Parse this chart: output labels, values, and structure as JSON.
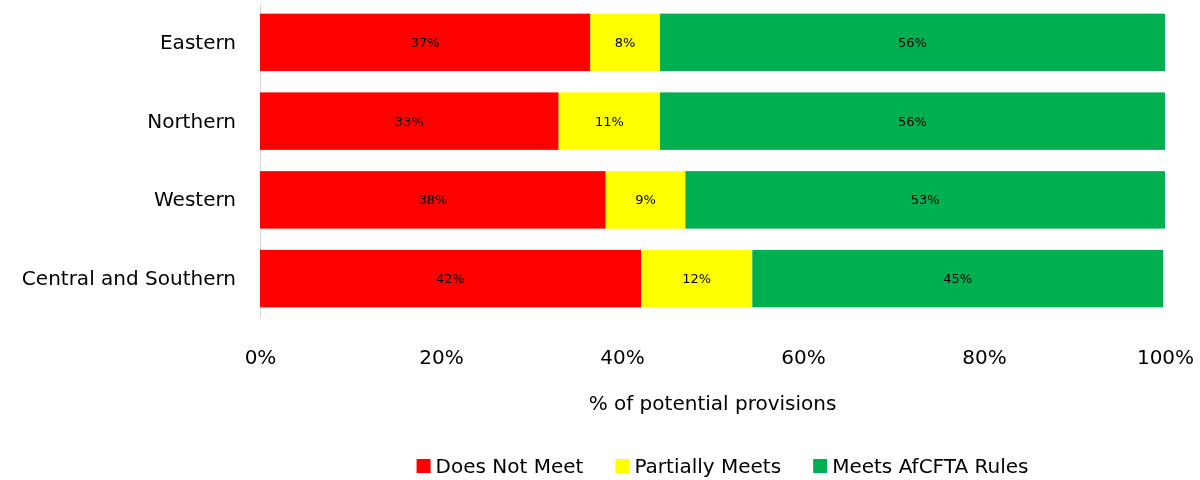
{
  "chart_data": {
    "type": "bar",
    "orientation": "horizontal",
    "stacked": true,
    "xlabel": "% of potential provisions",
    "categories": [
      "Eastern",
      "Northern",
      "Western",
      "Central and Southern"
    ],
    "series": [
      {
        "name": "Does Not Meet",
        "color": "#ff0000",
        "values": [
          36.5,
          33.0,
          38.2,
          42.1
        ],
        "value_labels": [
          "37%",
          "33%",
          "38%",
          "42%"
        ]
      },
      {
        "name": "Partially Meets",
        "color": "#ffff00",
        "values": [
          7.7,
          11.2,
          8.8,
          12.3
        ],
        "value_labels": [
          "8%",
          "11%",
          "9%",
          "12%"
        ]
      },
      {
        "name": "Meets AfCFTA Rules",
        "color": "#00b050",
        "values": [
          55.8,
          55.8,
          53.0,
          45.4
        ],
        "value_labels": [
          "56%",
          "56%",
          "53%",
          "45%"
        ]
      }
    ],
    "xlim": [
      0,
      100
    ],
    "xticks": [
      {
        "value": 0,
        "label": "0%"
      },
      {
        "value": 20,
        "label": "20%"
      },
      {
        "value": 40,
        "label": "40%"
      },
      {
        "value": 60,
        "label": "60%"
      },
      {
        "value": 80,
        "label": "80%"
      },
      {
        "value": 100,
        "label": "100%"
      }
    ],
    "grid": false,
    "legend": "bottom"
  }
}
